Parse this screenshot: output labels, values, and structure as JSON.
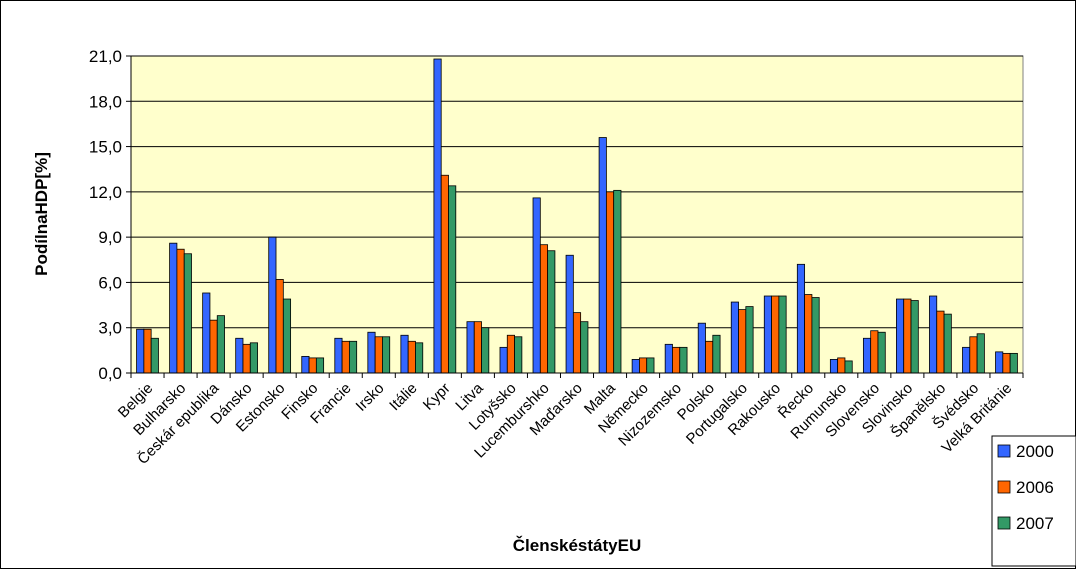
{
  "chart_data": {
    "type": "bar",
    "title": "",
    "xlabel": "ČlenskéstátyEU",
    "ylabel": "PodílnaHDP[%]",
    "ylim": [
      0,
      21
    ],
    "yticks": [
      "0,0",
      "3,0",
      "6,0",
      "9,0",
      "12,0",
      "15,0",
      "18,0",
      "21,0"
    ],
    "grid": true,
    "legend_position": "right",
    "categories": [
      "Belgie",
      "Bulharsko",
      "Českár epublika",
      "Dánsko",
      "Estonsko",
      "Finsko",
      "Francie",
      "Irsko",
      "Itálie",
      "Kypr",
      "Litva",
      "Lotyšsko",
      "Lucemburshko",
      "Maďarsko",
      "Malta",
      "Německo",
      "Nizozemsko",
      "Polsko",
      "Portugalsko",
      "Rakousko",
      "Řecko",
      "Rumunsko",
      "Slovensko",
      "Slovinsko",
      "Španělsko",
      "Švédsko",
      "Velká Británie"
    ],
    "series": [
      {
        "name": "2000",
        "color": "#3366ff",
        "values": [
          2.9,
          8.6,
          5.3,
          2.3,
          9.0,
          1.1,
          2.3,
          2.7,
          2.5,
          20.8,
          3.4,
          1.7,
          11.6,
          7.8,
          15.6,
          0.9,
          1.9,
          3.3,
          4.7,
          5.1,
          7.2,
          0.9,
          2.3,
          4.9,
          5.1,
          1.7,
          1.4
        ]
      },
      {
        "name": "2006",
        "color": "#ff6600",
        "values": [
          2.9,
          8.2,
          3.5,
          1.9,
          6.2,
          1.0,
          2.1,
          2.4,
          2.1,
          13.1,
          3.4,
          2.5,
          8.5,
          4.0,
          12.0,
          1.0,
          1.7,
          2.1,
          4.2,
          5.1,
          5.2,
          1.0,
          2.8,
          4.9,
          4.1,
          2.4,
          1.3
        ]
      },
      {
        "name": "2007",
        "color": "#339966",
        "values": [
          2.3,
          7.9,
          3.8,
          2.0,
          4.9,
          1.0,
          2.1,
          2.4,
          2.0,
          12.4,
          3.0,
          2.4,
          8.1,
          3.4,
          12.1,
          1.0,
          1.7,
          2.5,
          4.4,
          5.1,
          5.0,
          0.8,
          2.7,
          4.8,
          3.9,
          2.6,
          1.3
        ]
      }
    ]
  }
}
